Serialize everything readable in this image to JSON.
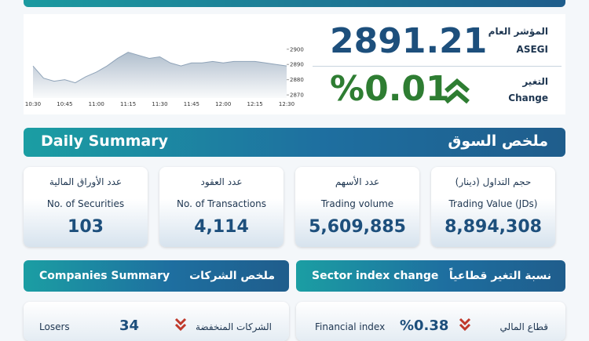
{
  "index_panel": {
    "label_ar": "المؤشر العام",
    "label_en": "ASEGI",
    "value": "2891.21",
    "change_label_ar": "التغير",
    "change_label_en": "Change",
    "change_value": "%0.01"
  },
  "chart_data": {
    "type": "area",
    "color": "#8fa3b8",
    "x": [
      "10:30",
      null,
      null,
      "10:45",
      null,
      null,
      "11:00",
      null,
      null,
      "11:15",
      null,
      null,
      "11:30",
      null,
      null,
      "11:45",
      null,
      null,
      "12:00",
      null,
      null,
      "12:15",
      null,
      null,
      "12:30"
    ],
    "values": [
      2889,
      2881,
      2879,
      2880,
      2878,
      2882,
      2885,
      2889,
      2894,
      2898,
      2896,
      2894,
      2895,
      2891,
      2889,
      2891,
      2891,
      2892,
      2891,
      2892,
      2892,
      2892,
      2891,
      2890,
      2889
    ],
    "ylim": [
      2868,
      2904
    ],
    "yticks": [
      2870,
      2880,
      2890,
      2900
    ]
  },
  "daily_summary": {
    "title_en": "Daily Summary",
    "title_ar": "ملخص السوق",
    "cards": [
      {
        "label_ar": "عدد الأوراق المالية",
        "label_en": "No. of Securities",
        "value": "103"
      },
      {
        "label_ar": "عدد العقود",
        "label_en": "No. of Transactions",
        "value": "4,114"
      },
      {
        "label_ar": "عدد الأسهم",
        "label_en": "Trading volume",
        "value": "5,609,885"
      },
      {
        "label_ar": "حجم التداول (دينار)",
        "label_en": "Trading Value (JDs)",
        "value": "8,894,308"
      }
    ]
  },
  "companies_summary": {
    "title_en": "Companies Summary",
    "title_ar": "ملخص الشركات",
    "rows": [
      {
        "label_en": "Losers",
        "value": "34",
        "label_ar": "الشركات المنخفضة"
      }
    ]
  },
  "sector_index_change": {
    "title_en": "Sector index change",
    "title_ar": "نسبة التغير قطاعياً",
    "rows": [
      {
        "label_en": "Financial index",
        "value": "%0.38",
        "label_ar": "قطاع المالي"
      }
    ]
  }
}
